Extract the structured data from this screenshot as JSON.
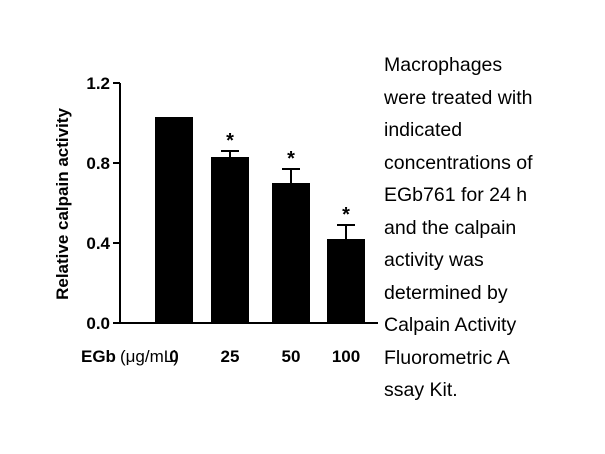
{
  "chart_data": {
    "type": "bar",
    "title": "",
    "ylabel": "Relative calpain activity",
    "xlabel_prefix": "EGb",
    "xlabel_unit": "(μg/mL)",
    "categories": [
      "0",
      "25",
      "50",
      "100"
    ],
    "values": [
      1.03,
      0.83,
      0.7,
      0.42
    ],
    "errors": [
      0.0,
      0.03,
      0.07,
      0.07
    ],
    "significance": [
      "",
      "*",
      "*",
      "*"
    ],
    "ylim": [
      0,
      1.2
    ],
    "yticks": [
      0.0,
      0.4,
      0.8,
      1.2
    ],
    "ytick_labels": [
      "0.0",
      "0.4",
      "0.8",
      "1.2"
    ],
    "grid": false,
    "bar_color": "#000000"
  },
  "caption_lines": [
    "Macrophages",
    "were treated with",
    "indicated",
    "concentrations of",
    "EGb761 for 24 h",
    "and the calpain",
    "activity was",
    "determined by",
    "Calpain Activity",
    "Fluorometric A",
    "ssay Kit."
  ]
}
